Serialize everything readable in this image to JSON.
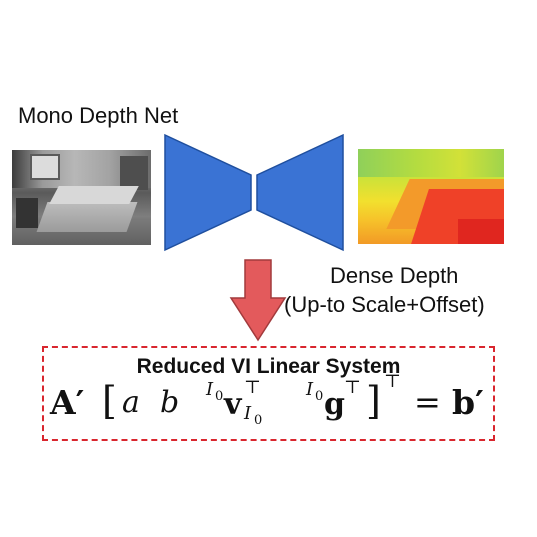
{
  "diagram": {
    "network_title": "Mono Depth Net",
    "output_title_line1": "Dense Depth",
    "output_title_line2": "(Up-to Scale+Offset)",
    "system_title": "Reduced VI Linear System",
    "equation": {
      "lhs_matrix": "A′",
      "open_bracket": "[",
      "a": "a",
      "b": "b",
      "io_prefix_1": "I",
      "io_prefix_1_sub": "0",
      "v": "v",
      "v_sup": "⊤",
      "v_sub": "I",
      "v_sub_sub": "0",
      "io_prefix_2": "I",
      "io_prefix_2_sub": "0",
      "g": "g",
      "g_sup": "⊤",
      "close_bracket": "]",
      "outer_sup": "⊤",
      "equals": "=",
      "rhs": "b′"
    },
    "colors": {
      "network": "#3a73d4",
      "arrow": "#e35a5c",
      "box_border": "#d9262e"
    }
  }
}
